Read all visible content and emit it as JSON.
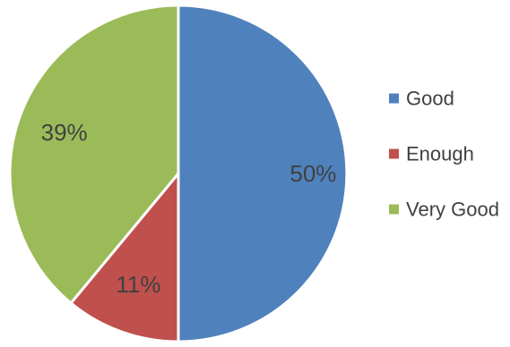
{
  "chart_data": {
    "type": "pie",
    "title": "",
    "slices": [
      {
        "label": "Good",
        "value": 50,
        "display": "50%",
        "color": "#4F81BD"
      },
      {
        "label": "Enough",
        "value": 11,
        "display": "11%",
        "color": "#C0504D"
      },
      {
        "label": "Very Good",
        "value": 39,
        "display": "39%",
        "color": "#9BBB59"
      }
    ],
    "start_angle_deg": 0,
    "direction": "clockwise",
    "legend": {
      "position": "right"
    },
    "slice_border_color": "#FFFFFF"
  }
}
